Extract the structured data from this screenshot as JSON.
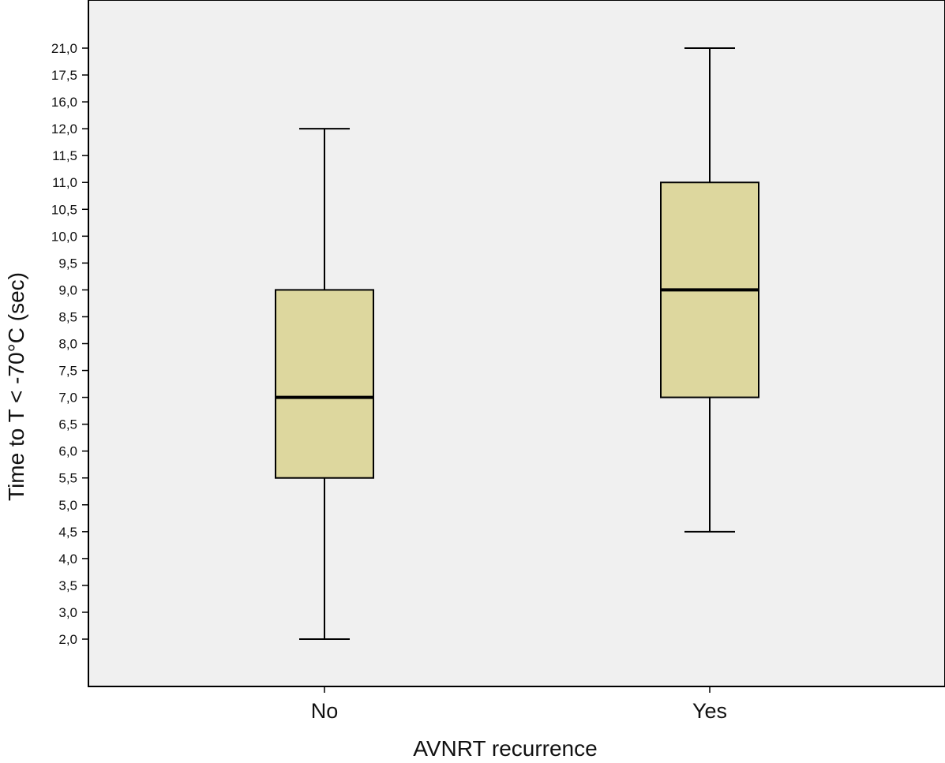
{
  "chart_data": {
    "type": "boxplot",
    "title": "",
    "xlabel": "AVNRT recurrence",
    "ylabel": "Time to T < -70°C (sec)",
    "categories": [
      "No",
      "Yes"
    ],
    "y_ticks": [
      "2,0",
      "3,0",
      "3,5",
      "4,0",
      "4,5",
      "5,0",
      "5,5",
      "6,0",
      "6,5",
      "7,0",
      "7,5",
      "8,0",
      "8,5",
      "9,0",
      "9,5",
      "10,0",
      "10,5",
      "11,0",
      "11,5",
      "12,0",
      "16,0",
      "17,5",
      "21,0"
    ],
    "boxes": [
      {
        "category": "No",
        "min": 2.0,
        "q1": 5.5,
        "median": 7.0,
        "q3": 9.0,
        "max": 12.0
      },
      {
        "category": "Yes",
        "min": 4.5,
        "q1": 7.0,
        "median": 9.0,
        "q3": 11.0,
        "max": 21.0
      }
    ],
    "colors": {
      "plot_background": "#f0f0f0",
      "box_fill": "#ddd79e",
      "line": "#000000"
    },
    "grid": false,
    "legend": "none"
  }
}
